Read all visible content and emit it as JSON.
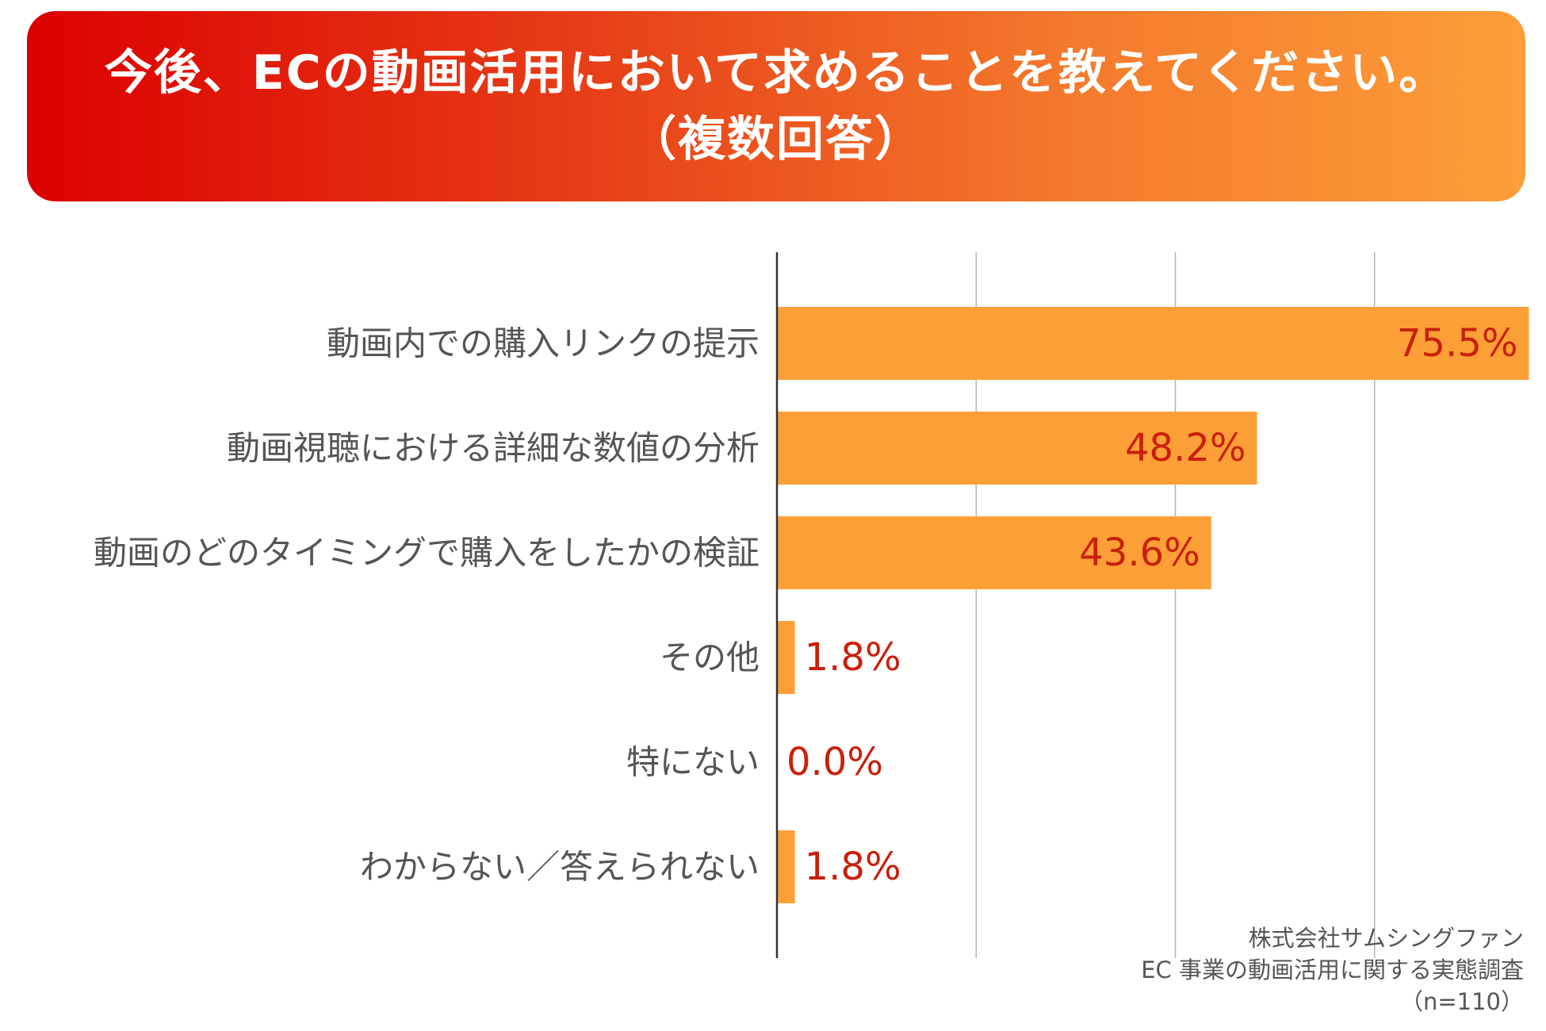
{
  "header": {
    "title_line1": "今後、ECの動画活用において求めることを教えてください。",
    "title_line2": "（複数回答）"
  },
  "colors": {
    "bar": "#fd9f37",
    "value_text": "#c8200c",
    "label_text": "#555555",
    "axis": "#333333",
    "grid": "#b4b4b4",
    "title_gradient_start": "#dc0000",
    "title_gradient_end": "#fd9e3a"
  },
  "chart_data": {
    "type": "bar",
    "orientation": "horizontal",
    "categories": [
      "動画内での購入リンクの提示",
      "動画視聴における詳細な数値の分析",
      "動画のどのタイミングで購入をしたかの検証",
      "その他",
      "特にない",
      "わからない／答えられない"
    ],
    "values": [
      75.5,
      48.2,
      43.6,
      1.8,
      0.0,
      1.8
    ],
    "value_labels": [
      "75.5%",
      "48.2%",
      "43.6%",
      "1.8%",
      "0.0%",
      "1.8%"
    ],
    "xlim": [
      0,
      80
    ],
    "grid_step": 20,
    "grid": true,
    "unit": "%",
    "title": "今後、ECの動画活用において求めることを教えてください。（複数回答）"
  },
  "source": {
    "company": "株式会社サムシングファン",
    "survey": "EC 事業の動画活用に関する実態調査",
    "sample": "（n=110）"
  }
}
